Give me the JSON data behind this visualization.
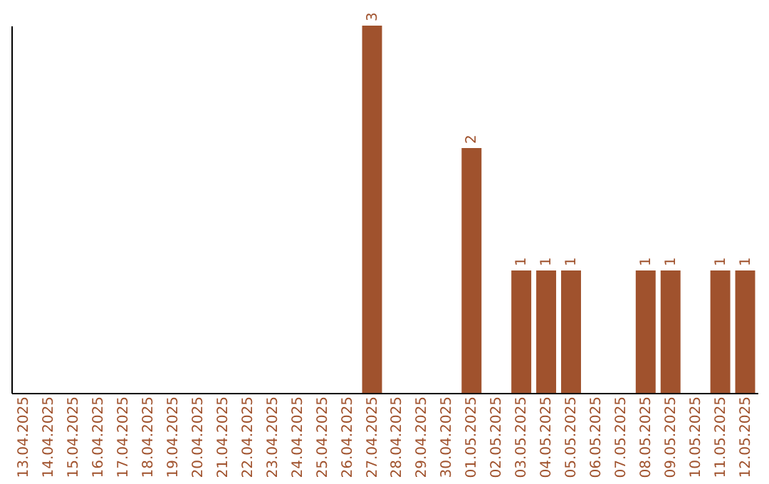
{
  "chart_data": {
    "type": "bar",
    "categories": [
      "13.04.2025",
      "14.04.2025",
      "15.04.2025",
      "16.04.2025",
      "17.04.2025",
      "18.04.2025",
      "19.04.2025",
      "20.04.2025",
      "21.04.2025",
      "22.04.2025",
      "23.04.2025",
      "24.04.2025",
      "25.04.2025",
      "26.04.2025",
      "27.04.2025",
      "28.04.2025",
      "29.04.2025",
      "30.04.2025",
      "01.05.2025",
      "02.05.2025",
      "03.05.2025",
      "04.05.2025",
      "05.05.2025",
      "06.05.2025",
      "07.05.2025",
      "08.05.2025",
      "09.05.2025",
      "10.05.2025",
      "11.05.2025",
      "12.05.2025"
    ],
    "values": [
      null,
      null,
      null,
      null,
      null,
      null,
      null,
      null,
      null,
      null,
      null,
      null,
      null,
      null,
      3,
      null,
      null,
      null,
      2,
      null,
      1,
      1,
      1,
      null,
      null,
      1,
      1,
      null,
      1,
      1
    ],
    "data_labels": true,
    "color": "#a0522d",
    "grid": false
  }
}
